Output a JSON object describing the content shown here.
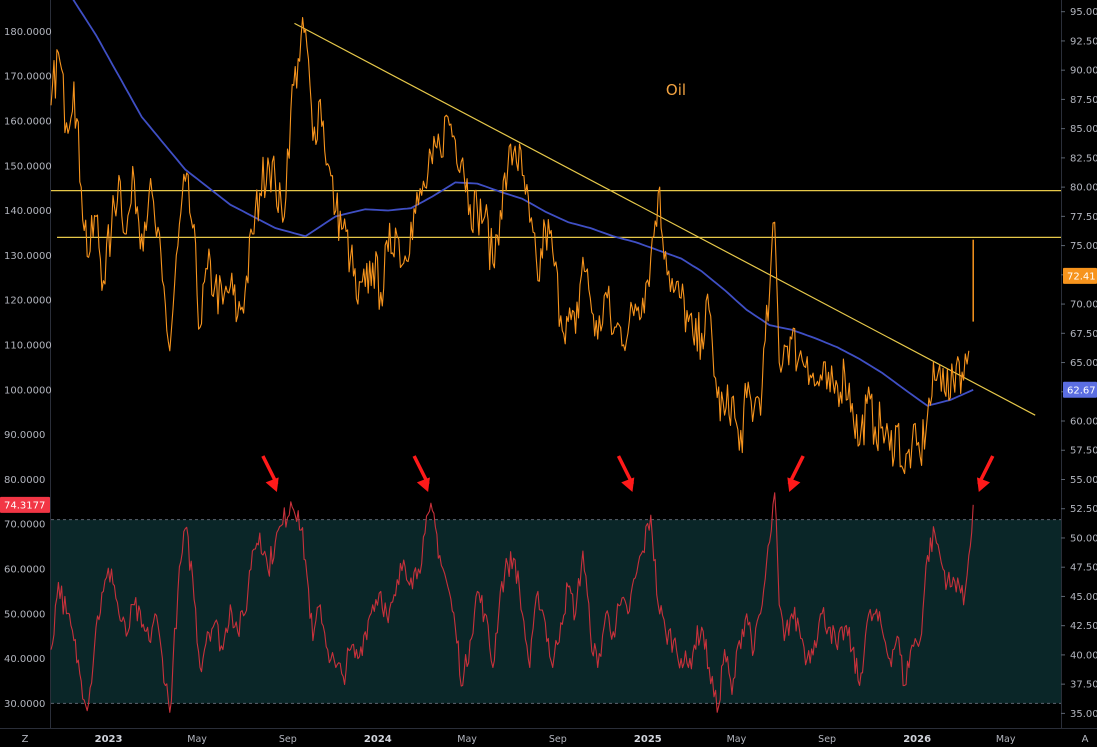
{
  "chart_data": {
    "type": "line",
    "title": "Oil",
    "colors": {
      "price": "#f7941d",
      "moving_average": "#3f4fc4",
      "indicator": "#c8313b",
      "trendlines": "#e6c84a",
      "arrows": "#ff1a1a",
      "band_fill": "#0a2628",
      "price_badge": "#f7941d",
      "ma_badge": "#5b6ee1",
      "indicator_badge": "#f23645"
    },
    "x_axis": {
      "labels": [
        "2023",
        "May",
        "Sep",
        "2024",
        "May",
        "Sep",
        "2025",
        "May",
        "Sep",
        "2026",
        "May"
      ],
      "range": [
        "2022-10-15",
        "2026-07-15"
      ]
    },
    "right_axis": {
      "ticks": [
        "95.00",
        "92.50",
        "90.00",
        "87.50",
        "85.00",
        "82.50",
        "80.00",
        "77.50",
        "75.00",
        "72.50",
        "70.00",
        "67.50",
        "65.00",
        "62.50",
        "60.00",
        "57.50",
        "55.00",
        "52.50",
        "50.00",
        "47.50",
        "45.00",
        "42.50",
        "40.00",
        "37.50",
        "35.00"
      ],
      "range": [
        33.75,
        96.0
      ]
    },
    "left_axis": {
      "ticks": [
        "180.0000",
        "170.0000",
        "160.0000",
        "150.0000",
        "140.0000",
        "130.0000",
        "120.0000",
        "110.0000",
        "100.0000",
        "90.0000",
        "80.0000",
        "70.0000",
        "60.0000",
        "50.0000",
        "40.0000",
        "30.0000"
      ],
      "range": [
        24.5,
        187.0
      ]
    },
    "last_values": {
      "price": "72.41",
      "moving_average": "62.67",
      "indicator": "74.3177"
    },
    "horizontal_levels": [
      79.7,
      75.7
    ],
    "band": [
      71,
      30
    ],
    "trendline": {
      "start": [
        "2023-09-10",
        94.0
      ],
      "end": [
        "2026-06-10",
        60.5
      ]
    },
    "arrow_dates": [
      "2023-08-28",
      "2024-03-20",
      "2024-12-22",
      "2025-06-28",
      "2026-03-12"
    ],
    "price_series": {
      "name": "",
      "points": [
        [
          "2022-10-15",
          87.0
        ],
        [
          "2022-10-25",
          91.5
        ],
        [
          "2022-11-05",
          85.5
        ],
        [
          "2022-11-15",
          89.0
        ],
        [
          "2022-11-25",
          80.0
        ],
        [
          "2022-12-05",
          74.0
        ],
        [
          "2022-12-15",
          77.5
        ],
        [
          "2022-12-25",
          72.0
        ],
        [
          "2023-01-05",
          76.5
        ],
        [
          "2023-01-15",
          81.0
        ],
        [
          "2023-01-25",
          76.0
        ],
        [
          "2023-02-05",
          80.5
        ],
        [
          "2023-02-15",
          76.0
        ],
        [
          "2023-02-25",
          79.5
        ],
        [
          "2023-03-05",
          77.0
        ],
        [
          "2023-03-15",
          72.0
        ],
        [
          "2023-03-25",
          66.0
        ],
        [
          "2023-04-05",
          75.0
        ],
        [
          "2023-04-15",
          80.5
        ],
        [
          "2023-04-25",
          76.5
        ],
        [
          "2023-05-05",
          68.0
        ],
        [
          "2023-05-15",
          73.0
        ],
        [
          "2023-05-25",
          71.5
        ],
        [
          "2023-06-05",
          70.0
        ],
        [
          "2023-06-15",
          71.5
        ],
        [
          "2023-06-25",
          69.0
        ],
        [
          "2023-07-05",
          71.0
        ],
        [
          "2023-07-15",
          76.0
        ],
        [
          "2023-07-25",
          79.5
        ],
        [
          "2023-08-05",
          82.5
        ],
        [
          "2023-08-15",
          80.5
        ],
        [
          "2023-08-25",
          77.0
        ],
        [
          "2023-09-05",
          86.5
        ],
        [
          "2023-09-15",
          91.0
        ],
        [
          "2023-09-25",
          93.5
        ],
        [
          "2023-10-05",
          84.0
        ],
        [
          "2023-10-15",
          87.5
        ],
        [
          "2023-10-25",
          82.0
        ],
        [
          "2023-11-05",
          78.0
        ],
        [
          "2023-11-15",
          76.5
        ],
        [
          "2023-11-25",
          74.0
        ],
        [
          "2023-12-05",
          70.0
        ],
        [
          "2023-12-15",
          71.5
        ],
        [
          "2023-12-25",
          73.5
        ],
        [
          "2024-01-05",
          71.0
        ],
        [
          "2024-01-15",
          74.5
        ],
        [
          "2024-01-25",
          76.5
        ],
        [
          "2024-02-05",
          73.5
        ],
        [
          "2024-02-15",
          77.0
        ],
        [
          "2024-02-25",
          78.5
        ],
        [
          "2024-03-05",
          80.0
        ],
        [
          "2024-03-15",
          82.0
        ],
        [
          "2024-03-25",
          83.5
        ],
        [
          "2024-04-05",
          86.0
        ],
        [
          "2024-04-15",
          84.0
        ],
        [
          "2024-04-25",
          82.5
        ],
        [
          "2024-05-05",
          78.5
        ],
        [
          "2024-05-15",
          78.0
        ],
        [
          "2024-05-25",
          77.5
        ],
        [
          "2024-06-05",
          73.5
        ],
        [
          "2024-06-15",
          78.0
        ],
        [
          "2024-06-25",
          81.5
        ],
        [
          "2024-07-05",
          83.5
        ],
        [
          "2024-07-15",
          81.0
        ],
        [
          "2024-07-25",
          77.0
        ],
        [
          "2024-08-05",
          72.0
        ],
        [
          "2024-08-15",
          76.5
        ],
        [
          "2024-08-25",
          74.5
        ],
        [
          "2024-09-05",
          69.0
        ],
        [
          "2024-09-15",
          68.5
        ],
        [
          "2024-09-25",
          67.5
        ],
        [
          "2024-10-05",
          74.0
        ],
        [
          "2024-10-15",
          70.5
        ],
        [
          "2024-10-25",
          67.0
        ],
        [
          "2024-11-05",
          71.0
        ],
        [
          "2024-11-15",
          67.5
        ],
        [
          "2024-11-25",
          68.0
        ],
        [
          "2024-12-05",
          67.5
        ],
        [
          "2024-12-15",
          70.0
        ],
        [
          "2024-12-25",
          70.5
        ],
        [
          "2025-01-05",
          74.0
        ],
        [
          "2025-01-15",
          79.5
        ],
        [
          "2025-01-25",
          74.5
        ],
        [
          "2025-02-05",
          71.0
        ],
        [
          "2025-02-15",
          70.5
        ],
        [
          "2025-02-25",
          68.5
        ],
        [
          "2025-03-05",
          66.5
        ],
        [
          "2025-03-15",
          67.5
        ],
        [
          "2025-03-25",
          69.5
        ],
        [
          "2025-04-05",
          62.0
        ],
        [
          "2025-04-15",
          60.5
        ],
        [
          "2025-04-25",
          62.0
        ],
        [
          "2025-05-05",
          57.5
        ],
        [
          "2025-05-15",
          62.0
        ],
        [
          "2025-05-25",
          61.0
        ],
        [
          "2025-06-05",
          63.0
        ],
        [
          "2025-06-15",
          71.0
        ],
        [
          "2025-06-22",
          77.0
        ],
        [
          "2025-06-28",
          65.0
        ],
        [
          "2025-07-05",
          66.5
        ],
        [
          "2025-07-15",
          67.0
        ],
        [
          "2025-07-25",
          65.5
        ],
        [
          "2025-08-05",
          65.5
        ],
        [
          "2025-08-15",
          63.0
        ],
        [
          "2025-08-25",
          63.5
        ],
        [
          "2025-09-05",
          62.5
        ],
        [
          "2025-09-15",
          63.0
        ],
        [
          "2025-09-25",
          64.0
        ],
        [
          "2025-10-05",
          61.5
        ],
        [
          "2025-10-15",
          58.0
        ],
        [
          "2025-10-25",
          61.5
        ],
        [
          "2025-11-05",
          59.5
        ],
        [
          "2025-11-15",
          59.5
        ],
        [
          "2025-11-25",
          57.5
        ],
        [
          "2025-12-05",
          59.5
        ],
        [
          "2025-12-15",
          55.5
        ],
        [
          "2025-12-25",
          58.0
        ],
        [
          "2026-01-05",
          57.0
        ],
        [
          "2026-01-15",
          60.5
        ],
        [
          "2026-01-25",
          63.5
        ],
        [
          "2026-02-05",
          64.5
        ],
        [
          "2026-02-15",
          62.0
        ],
        [
          "2026-02-25",
          65.5
        ],
        [
          "2026-03-05",
          63.5
        ],
        [
          "2026-03-12",
          66.0
        ]
      ],
      "last_bar": {
        "date": "2026-03-18",
        "high": 75.5,
        "low": 68.5
      }
    },
    "moving_average_series": {
      "name": "",
      "points": [
        [
          "2022-10-15",
          99.0
        ],
        [
          "2022-12-15",
          93.0
        ],
        [
          "2023-02-15",
          86.0
        ],
        [
          "2023-04-15",
          81.5
        ],
        [
          "2023-06-15",
          78.5
        ],
        [
          "2023-08-15",
          76.5
        ],
        [
          "2023-09-25",
          75.8
        ],
        [
          "2023-11-05",
          77.5
        ],
        [
          "2023-12-15",
          78.1
        ],
        [
          "2024-01-15",
          78.0
        ],
        [
          "2024-02-15",
          78.2
        ],
        [
          "2024-03-15",
          79.2
        ],
        [
          "2024-04-15",
          80.4
        ],
        [
          "2024-05-15",
          80.3
        ],
        [
          "2024-06-15",
          79.6
        ],
        [
          "2024-07-15",
          79.0
        ],
        [
          "2024-08-15",
          77.9
        ],
        [
          "2024-09-15",
          77.0
        ],
        [
          "2024-10-15",
          76.5
        ],
        [
          "2024-11-15",
          75.8
        ],
        [
          "2024-12-15",
          75.3
        ],
        [
          "2025-01-15",
          74.6
        ],
        [
          "2025-02-15",
          73.9
        ],
        [
          "2025-03-15",
          72.8
        ],
        [
          "2025-04-15",
          71.2
        ],
        [
          "2025-05-15",
          69.5
        ],
        [
          "2025-06-15",
          68.2
        ],
        [
          "2025-07-15",
          67.8
        ],
        [
          "2025-08-15",
          67.1
        ],
        [
          "2025-09-15",
          66.3
        ],
        [
          "2025-10-15",
          65.3
        ],
        [
          "2025-11-15",
          64.1
        ],
        [
          "2025-12-15",
          62.7
        ],
        [
          "2026-01-15",
          61.3
        ],
        [
          "2026-02-15",
          61.8
        ],
        [
          "2026-03-18",
          62.67
        ]
      ]
    },
    "indicator_series": {
      "name": "",
      "points": [
        [
          "2022-10-15",
          42
        ],
        [
          "2022-10-25",
          57
        ],
        [
          "2022-11-05",
          50
        ],
        [
          "2022-11-15",
          44
        ],
        [
          "2022-11-25",
          35
        ],
        [
          "2022-12-05",
          30
        ],
        [
          "2022-12-15",
          47
        ],
        [
          "2022-12-25",
          55
        ],
        [
          "2023-01-05",
          60
        ],
        [
          "2023-01-15",
          50
        ],
        [
          "2023-01-25",
          45
        ],
        [
          "2023-02-05",
          52
        ],
        [
          "2023-02-15",
          47
        ],
        [
          "2023-02-25",
          44
        ],
        [
          "2023-03-05",
          50
        ],
        [
          "2023-03-15",
          40
        ],
        [
          "2023-03-25",
          28
        ],
        [
          "2023-04-05",
          55
        ],
        [
          "2023-04-15",
          69
        ],
        [
          "2023-04-25",
          58
        ],
        [
          "2023-05-05",
          38
        ],
        [
          "2023-05-15",
          46
        ],
        [
          "2023-05-25",
          48
        ],
        [
          "2023-06-05",
          42
        ],
        [
          "2023-06-15",
          52
        ],
        [
          "2023-06-25",
          46
        ],
        [
          "2023-07-05",
          50
        ],
        [
          "2023-07-15",
          64
        ],
        [
          "2023-07-25",
          68
        ],
        [
          "2023-08-05",
          60
        ],
        [
          "2023-08-15",
          66
        ],
        [
          "2023-08-25",
          70
        ],
        [
          "2023-09-05",
          75
        ],
        [
          "2023-09-15",
          73
        ],
        [
          "2023-09-25",
          62
        ],
        [
          "2023-10-05",
          44
        ],
        [
          "2023-10-15",
          52
        ],
        [
          "2023-10-25",
          42
        ],
        [
          "2023-11-05",
          38
        ],
        [
          "2023-11-15",
          36
        ],
        [
          "2023-11-25",
          42
        ],
        [
          "2023-12-05",
          40
        ],
        [
          "2023-12-15",
          46
        ],
        [
          "2023-12-25",
          52
        ],
        [
          "2024-01-05",
          55
        ],
        [
          "2024-01-15",
          48
        ],
        [
          "2024-01-25",
          54
        ],
        [
          "2024-02-05",
          62
        ],
        [
          "2024-02-15",
          58
        ],
        [
          "2024-02-25",
          60
        ],
        [
          "2024-03-05",
          68
        ],
        [
          "2024-03-15",
          73
        ],
        [
          "2024-03-25",
          63
        ],
        [
          "2024-04-05",
          56
        ],
        [
          "2024-04-15",
          47
        ],
        [
          "2024-04-25",
          34
        ],
        [
          "2024-05-05",
          44
        ],
        [
          "2024-05-15",
          55
        ],
        [
          "2024-05-25",
          50
        ],
        [
          "2024-06-05",
          38
        ],
        [
          "2024-06-15",
          55
        ],
        [
          "2024-06-25",
          61
        ],
        [
          "2024-07-05",
          62
        ],
        [
          "2024-07-15",
          50
        ],
        [
          "2024-07-25",
          38
        ],
        [
          "2024-08-05",
          55
        ],
        [
          "2024-08-15",
          48
        ],
        [
          "2024-08-25",
          38
        ],
        [
          "2024-09-05",
          48
        ],
        [
          "2024-09-15",
          56
        ],
        [
          "2024-09-25",
          50
        ],
        [
          "2024-10-05",
          64
        ],
        [
          "2024-10-15",
          46
        ],
        [
          "2024-10-25",
          38
        ],
        [
          "2024-11-05",
          50
        ],
        [
          "2024-11-15",
          46
        ],
        [
          "2024-11-25",
          52
        ],
        [
          "2024-12-05",
          50
        ],
        [
          "2024-12-15",
          58
        ],
        [
          "2024-12-25",
          64
        ],
        [
          "2025-01-05",
          72
        ],
        [
          "2025-01-15",
          52
        ],
        [
          "2025-01-25",
          46
        ],
        [
          "2025-02-05",
          44
        ],
        [
          "2025-02-15",
          40
        ],
        [
          "2025-02-25",
          38
        ],
        [
          "2025-03-05",
          43
        ],
        [
          "2025-03-15",
          47
        ],
        [
          "2025-03-25",
          38
        ],
        [
          "2025-04-05",
          28
        ],
        [
          "2025-04-15",
          42
        ],
        [
          "2025-04-25",
          32
        ],
        [
          "2025-05-05",
          44
        ],
        [
          "2025-05-15",
          50
        ],
        [
          "2025-05-25",
          42
        ],
        [
          "2025-06-05",
          52
        ],
        [
          "2025-06-15",
          66
        ],
        [
          "2025-06-22",
          77
        ],
        [
          "2025-06-28",
          52
        ],
        [
          "2025-07-05",
          44
        ],
        [
          "2025-07-15",
          50
        ],
        [
          "2025-07-25",
          47
        ],
        [
          "2025-08-05",
          40
        ],
        [
          "2025-08-15",
          44
        ],
        [
          "2025-08-25",
          50
        ],
        [
          "2025-09-05",
          47
        ],
        [
          "2025-09-15",
          42
        ],
        [
          "2025-09-25",
          47
        ],
        [
          "2025-10-05",
          42
        ],
        [
          "2025-10-15",
          34
        ],
        [
          "2025-10-25",
          48
        ],
        [
          "2025-11-05",
          50
        ],
        [
          "2025-11-15",
          46
        ],
        [
          "2025-11-25",
          40
        ],
        [
          "2025-12-05",
          45
        ],
        [
          "2025-12-15",
          34
        ],
        [
          "2025-12-25",
          43
        ],
        [
          "2026-01-05",
          44
        ],
        [
          "2026-01-15",
          63
        ],
        [
          "2026-01-25",
          68
        ],
        [
          "2026-02-05",
          60
        ],
        [
          "2026-02-15",
          56
        ],
        [
          "2026-02-25",
          58
        ],
        [
          "2026-03-05",
          52
        ],
        [
          "2026-03-12",
          63
        ],
        [
          "2026-03-18",
          74.32
        ]
      ]
    }
  },
  "ui": {
    "timezone_button": "Z",
    "auto_scale_button": "A"
  }
}
